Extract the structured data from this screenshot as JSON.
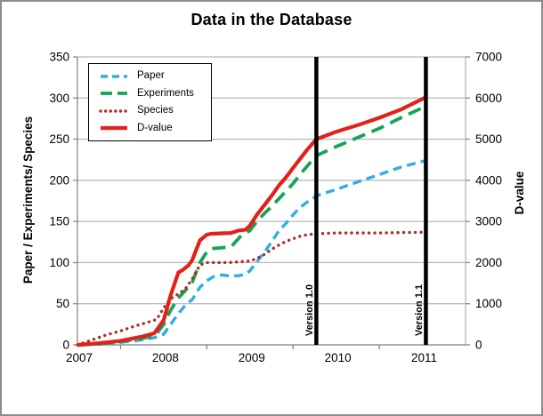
{
  "chart_data": {
    "type": "line",
    "title": "Data in the Database",
    "left_axis": {
      "label": "Paper / Experiments/ Species",
      "min": 0,
      "max": 350,
      "step": 50
    },
    "right_axis": {
      "label": "D-value",
      "min": 0,
      "max": 7000,
      "step": 1000
    },
    "x_axis": {
      "range": [
        2007,
        2011.5
      ],
      "tick_labels": [
        "2007",
        "2008",
        "2009",
        "2010",
        "2011"
      ],
      "minor_ticks": [
        2007.5,
        2008.5,
        2009.5,
        2010.5
      ]
    },
    "grid": true,
    "grid_color": "#a6a6a6",
    "axis_color": "#808080",
    "legend_position": "top-left-inside",
    "annotations": [
      {
        "label": "Version 1.0",
        "x": 2009.77,
        "color": "#000000",
        "width": 4.5
      },
      {
        "label": "Version 1.1",
        "x": 2011.04,
        "color": "#000000",
        "width": 4.5
      }
    ],
    "series": [
      {
        "name": "Paper",
        "axis": "left",
        "color": "#2fafe0",
        "style": "dashed",
        "stroke_width": 3.4,
        "points": [
          [
            2007,
            0
          ],
          [
            2007.25,
            1
          ],
          [
            2007.5,
            3
          ],
          [
            2007.75,
            6
          ],
          [
            2007.9,
            9
          ],
          [
            2008,
            13
          ],
          [
            2008.08,
            25
          ],
          [
            2008.17,
            38
          ],
          [
            2008.25,
            48
          ],
          [
            2008.33,
            55
          ],
          [
            2008.42,
            70
          ],
          [
            2008.5,
            78
          ],
          [
            2008.58,
            83
          ],
          [
            2008.67,
            85
          ],
          [
            2008.75,
            84
          ],
          [
            2008.87,
            84
          ],
          [
            2008.95,
            86
          ],
          [
            2009,
            90
          ],
          [
            2009.08,
            101
          ],
          [
            2009.17,
            113
          ],
          [
            2009.25,
            125
          ],
          [
            2009.33,
            138
          ],
          [
            2009.42,
            148
          ],
          [
            2009.5,
            158
          ],
          [
            2009.58,
            167
          ],
          [
            2009.67,
            174
          ],
          [
            2009.77,
            181
          ],
          [
            2010,
            189
          ],
          [
            2010.25,
            198
          ],
          [
            2010.5,
            207
          ],
          [
            2010.75,
            216
          ],
          [
            2011.04,
            224
          ]
        ]
      },
      {
        "name": "Experiments",
        "axis": "left",
        "color": "#17a458",
        "style": "long-dash",
        "stroke_width": 3.8,
        "points": [
          [
            2007,
            0
          ],
          [
            2007.25,
            1
          ],
          [
            2007.5,
            4
          ],
          [
            2007.75,
            8
          ],
          [
            2007.9,
            11
          ],
          [
            2008,
            25
          ],
          [
            2008.08,
            42
          ],
          [
            2008.17,
            57
          ],
          [
            2008.25,
            66
          ],
          [
            2008.33,
            76
          ],
          [
            2008.42,
            100
          ],
          [
            2008.5,
            113
          ],
          [
            2008.55,
            117
          ],
          [
            2008.78,
            119
          ],
          [
            2008.9,
            133
          ],
          [
            2009,
            139
          ],
          [
            2009.08,
            150
          ],
          [
            2009.17,
            160
          ],
          [
            2009.25,
            168
          ],
          [
            2009.33,
            177
          ],
          [
            2009.42,
            187
          ],
          [
            2009.5,
            196
          ],
          [
            2009.58,
            207
          ],
          [
            2009.67,
            218
          ],
          [
            2009.77,
            230
          ],
          [
            2010,
            241
          ],
          [
            2010.25,
            252
          ],
          [
            2010.5,
            263
          ],
          [
            2010.75,
            276
          ],
          [
            2011.04,
            290
          ]
        ]
      },
      {
        "name": "Species",
        "axis": "left",
        "color": "#a8322a",
        "style": "dotted",
        "stroke_width": 3.4,
        "points": [
          [
            2007,
            0
          ],
          [
            2007.17,
            6
          ],
          [
            2007.33,
            12
          ],
          [
            2007.5,
            17
          ],
          [
            2007.67,
            23
          ],
          [
            2007.83,
            28
          ],
          [
            2007.92,
            31
          ],
          [
            2008,
            45
          ],
          [
            2008.08,
            56
          ],
          [
            2008.17,
            62
          ],
          [
            2008.25,
            68
          ],
          [
            2008.33,
            80
          ],
          [
            2008.42,
            97
          ],
          [
            2008.5,
            100
          ],
          [
            2008.75,
            100
          ],
          [
            2009,
            102
          ],
          [
            2009.08,
            105
          ],
          [
            2009.17,
            110
          ],
          [
            2009.25,
            116
          ],
          [
            2009.33,
            121
          ],
          [
            2009.42,
            126
          ],
          [
            2009.5,
            129
          ],
          [
            2009.58,
            132
          ],
          [
            2009.67,
            134
          ],
          [
            2009.77,
            135
          ],
          [
            2010,
            136
          ],
          [
            2010.5,
            136
          ],
          [
            2011.04,
            137
          ]
        ]
      },
      {
        "name": "D-value",
        "axis": "right",
        "color": "#e32119",
        "style": "solid",
        "stroke_width": 4.2,
        "points": [
          [
            2007,
            0
          ],
          [
            2007.25,
            40
          ],
          [
            2007.5,
            100
          ],
          [
            2007.75,
            200
          ],
          [
            2007.89,
            280
          ],
          [
            2008,
            600
          ],
          [
            2008.08,
            1200
          ],
          [
            2008.17,
            1760
          ],
          [
            2008.22,
            1820
          ],
          [
            2008.29,
            1940
          ],
          [
            2008.33,
            2060
          ],
          [
            2008.42,
            2540
          ],
          [
            2008.5,
            2680
          ],
          [
            2008.55,
            2700
          ],
          [
            2008.78,
            2720
          ],
          [
            2008.87,
            2780
          ],
          [
            2008.95,
            2800
          ],
          [
            2009,
            2900
          ],
          [
            2009.08,
            3160
          ],
          [
            2009.17,
            3400
          ],
          [
            2009.25,
            3620
          ],
          [
            2009.33,
            3860
          ],
          [
            2009.42,
            4080
          ],
          [
            2009.5,
            4300
          ],
          [
            2009.58,
            4520
          ],
          [
            2009.67,
            4760
          ],
          [
            2009.77,
            5000
          ],
          [
            2010,
            5180
          ],
          [
            2010.25,
            5340
          ],
          [
            2010.5,
            5520
          ],
          [
            2010.75,
            5720
          ],
          [
            2011.04,
            6020
          ]
        ]
      }
    ]
  }
}
